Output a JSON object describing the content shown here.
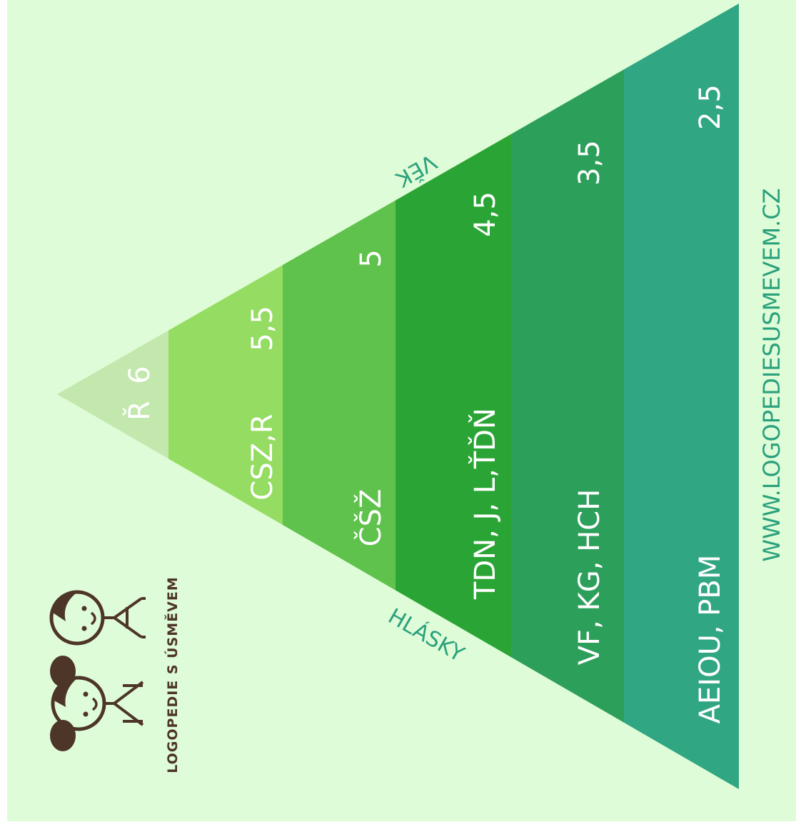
{
  "colors": {
    "page_background": "#ffffff",
    "panel_background": "#dffcd8",
    "band_1": "#c3e8ae",
    "band_2": "#95dc63",
    "band_3": "#5fc24c",
    "band_4": "#2aa535",
    "band_5": "#2c9f5a",
    "band_6": "#30a683",
    "band_text": "#ffffff",
    "accent_teal": "#2aa17c",
    "logo_brown": "#4d3527"
  },
  "axis_labels": {
    "age": "VĚK",
    "sounds": "HLÁSKY"
  },
  "bands": [
    {
      "sounds": "Ř",
      "age": "6"
    },
    {
      "sounds": "CSZ,R",
      "age": "5,5"
    },
    {
      "sounds": "ČŠŽ",
      "age": "5"
    },
    {
      "sounds": "TDN, J, L,ŤĎŇ",
      "age": "4,5"
    },
    {
      "sounds": "VF, KG, HCH",
      "age": "3,5"
    },
    {
      "sounds": "AEIOU, PBM",
      "age": "2,5"
    }
  ],
  "logo": {
    "text": "LOGOPEDIE S ÚSMĚVEM"
  },
  "website": "WWW.LOGOPEDIESUSMEVEM.CZ"
}
